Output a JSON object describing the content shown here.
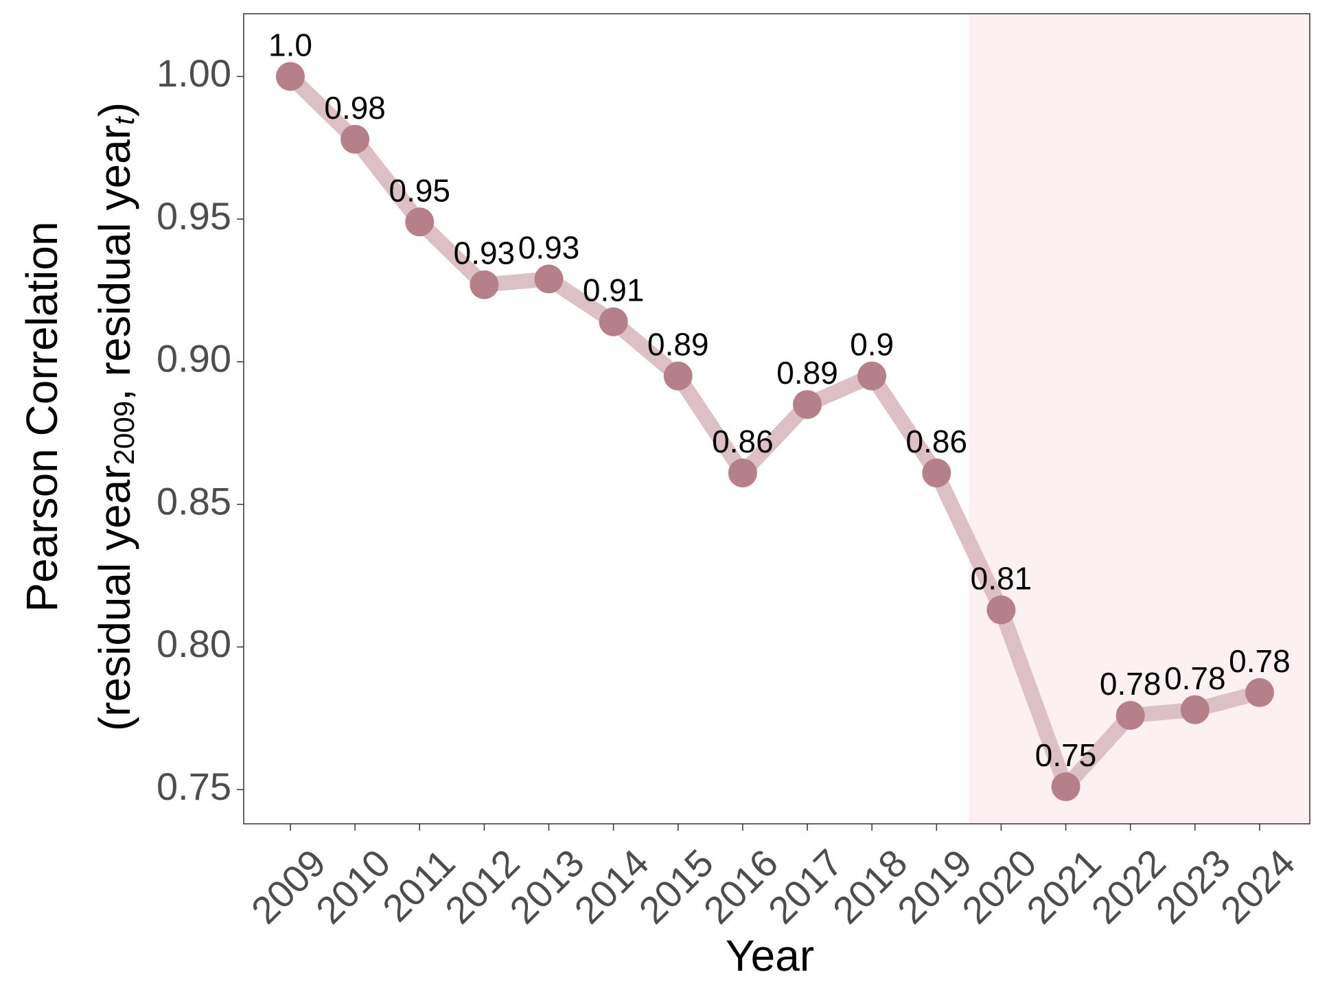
{
  "chart_data": {
    "type": "line",
    "xlabel": "Year",
    "ylabel_line1": "Pearson Correlation",
    "ylabel_line2_parts": [
      "(residual year",
      "2009",
      ", residual year",
      "t",
      ")"
    ],
    "ylim": [
      0.738,
      1.022
    ],
    "yticks": [
      0.75,
      0.8,
      0.85,
      0.9,
      0.95,
      1.0
    ],
    "ytick_labels": [
      "0.75",
      "0.80",
      "0.85",
      "0.90",
      "0.95",
      "1.00"
    ],
    "x": [
      "2009",
      "2010",
      "2011",
      "2012",
      "2013",
      "2014",
      "2015",
      "2016",
      "2017",
      "2018",
      "2019",
      "2020",
      "2021",
      "2022",
      "2023",
      "2024"
    ],
    "values": [
      1.0,
      0.978,
      0.949,
      0.927,
      0.929,
      0.914,
      0.895,
      0.861,
      0.885,
      0.895,
      0.861,
      0.813,
      0.751,
      0.776,
      0.778,
      0.784
    ],
    "point_labels": [
      "1.0",
      "0.98",
      "0.95",
      "0.93",
      "0.93",
      "0.91",
      "0.89",
      "0.86",
      "0.89",
      "0.9",
      "0.86",
      "0.81",
      "0.75",
      "0.78",
      "0.78",
      "0.78"
    ],
    "shaded_region_x": [
      2019.5,
      2024.75
    ],
    "grid": false,
    "line_color": "#dcc0c6",
    "point_color": "#b5808a",
    "shade_color": "#fdf0f2"
  }
}
